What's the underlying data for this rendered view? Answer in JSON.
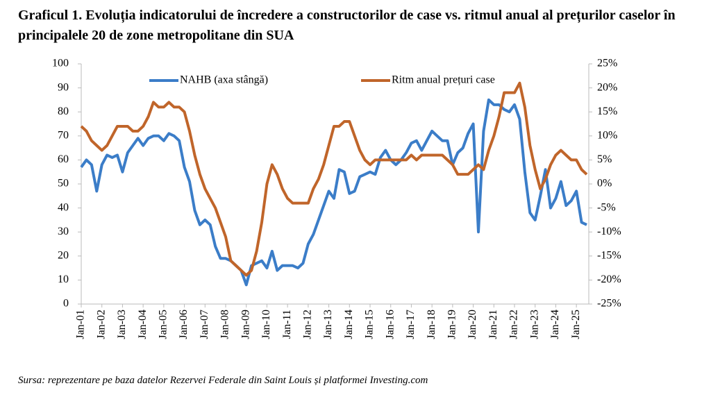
{
  "chart_data": {
    "type": "line",
    "title": "Graficul 1. Evoluția indicatorului de încredere a constructorilor de case vs. ritmul anual al prețurilor caselor în principalele 20 de zone metropolitane din SUA",
    "source": "Sursa: reprezentare pe baza datelor Rezervei Federale din Saint Louis și platformei Investing.com",
    "categories": [
      "Jan-01",
      null,
      null,
      null,
      "Jan-02",
      null,
      null,
      null,
      "Jan-03",
      null,
      null,
      null,
      "Jan-04",
      null,
      null,
      null,
      "Jan-05",
      null,
      null,
      null,
      "Jan-06",
      null,
      null,
      null,
      "Jan-07",
      null,
      null,
      null,
      "Jan-08",
      null,
      null,
      null,
      "Jan-09",
      null,
      null,
      null,
      "Jan-10",
      null,
      null,
      null,
      "Jan-11",
      null,
      null,
      null,
      "Jan-12",
      null,
      null,
      null,
      "Jan-13",
      null,
      null,
      null,
      "Jan-14",
      null,
      null,
      null,
      "Jan-15",
      null,
      null,
      null,
      "Jan-16",
      null,
      null,
      null,
      "Jan-17",
      null,
      null,
      null,
      "Jan-18",
      null,
      null,
      null,
      "Jan-19",
      null,
      null,
      null,
      "Jan-20",
      null,
      null,
      null,
      "Jan-21",
      null,
      null,
      null,
      "Jan-22",
      null,
      null,
      null,
      "Jan-23",
      null,
      null,
      null,
      "Jan-24",
      null,
      null,
      null,
      "Jan-25",
      null,
      null
    ],
    "series": [
      {
        "name": "NAHB (axa stângă)",
        "color": "#3b7dc8",
        "axis": "y",
        "values": [
          57,
          60,
          58,
          47,
          58,
          62,
          61,
          62,
          55,
          63,
          66,
          69,
          66,
          69,
          70,
          70,
          68,
          71,
          70,
          68,
          57,
          51,
          39,
          33,
          35,
          33,
          24,
          19,
          19,
          18,
          16,
          14,
          8,
          16,
          17,
          18,
          15,
          22,
          14,
          16,
          16,
          16,
          15,
          17,
          25,
          29,
          35,
          41,
          47,
          44,
          56,
          55,
          46,
          47,
          53,
          54,
          55,
          54,
          61,
          64,
          60,
          58,
          60,
          63,
          67,
          68,
          64,
          68,
          72,
          70,
          68,
          68,
          58,
          63,
          65,
          71,
          75,
          30,
          72,
          85,
          83,
          83,
          81,
          80,
          83,
          77,
          55,
          38,
          35,
          45,
          56,
          40,
          44,
          51,
          41,
          43,
          47,
          34,
          33
        ]
      },
      {
        "name": "Ritm anual prețuri case",
        "color": "#c0652a",
        "axis": "y2",
        "values": [
          12,
          11,
          9,
          8,
          7,
          8,
          10,
          12,
          12,
          12,
          11,
          11,
          12,
          14,
          17,
          16,
          16,
          17,
          16,
          16,
          15,
          11,
          6,
          2,
          -1,
          -3,
          -5,
          -8,
          -11,
          -16,
          -17,
          -18,
          -19,
          -18,
          -14,
          -8,
          0,
          4,
          2,
          -1,
          -3,
          -4,
          -4,
          -4,
          -4,
          -1,
          1,
          4,
          8,
          12,
          12,
          13,
          13,
          10,
          7,
          5,
          4,
          5,
          5,
          5,
          5,
          5,
          5,
          5,
          6,
          5,
          6,
          6,
          6,
          6,
          6,
          5,
          4,
          2,
          2,
          2,
          3,
          4,
          3,
          7,
          10,
          14,
          19,
          19,
          19,
          21,
          16,
          8,
          3,
          -1,
          1,
          4,
          6,
          7,
          6,
          5,
          5,
          3,
          2
        ]
      }
    ],
    "ylim": [
      0,
      100
    ],
    "yticks": [
      0,
      10,
      20,
      30,
      40,
      50,
      60,
      70,
      80,
      90,
      100
    ],
    "y2lim": [
      -25,
      25
    ],
    "y2ticks": [
      {
        "value": -25,
        "label": "-25%"
      },
      {
        "value": -20,
        "label": "-20%"
      },
      {
        "value": -15,
        "label": "-15%"
      },
      {
        "value": -10,
        "label": "-10%"
      },
      {
        "value": -5,
        "label": "-5%"
      },
      {
        "value": 0,
        "label": "0%"
      },
      {
        "value": 5,
        "label": "5%"
      },
      {
        "value": 10,
        "label": "10%"
      },
      {
        "value": 15,
        "label": "15%"
      },
      {
        "value": 20,
        "label": "20%"
      },
      {
        "value": 25,
        "label": "25%"
      }
    ],
    "grid": false
  }
}
